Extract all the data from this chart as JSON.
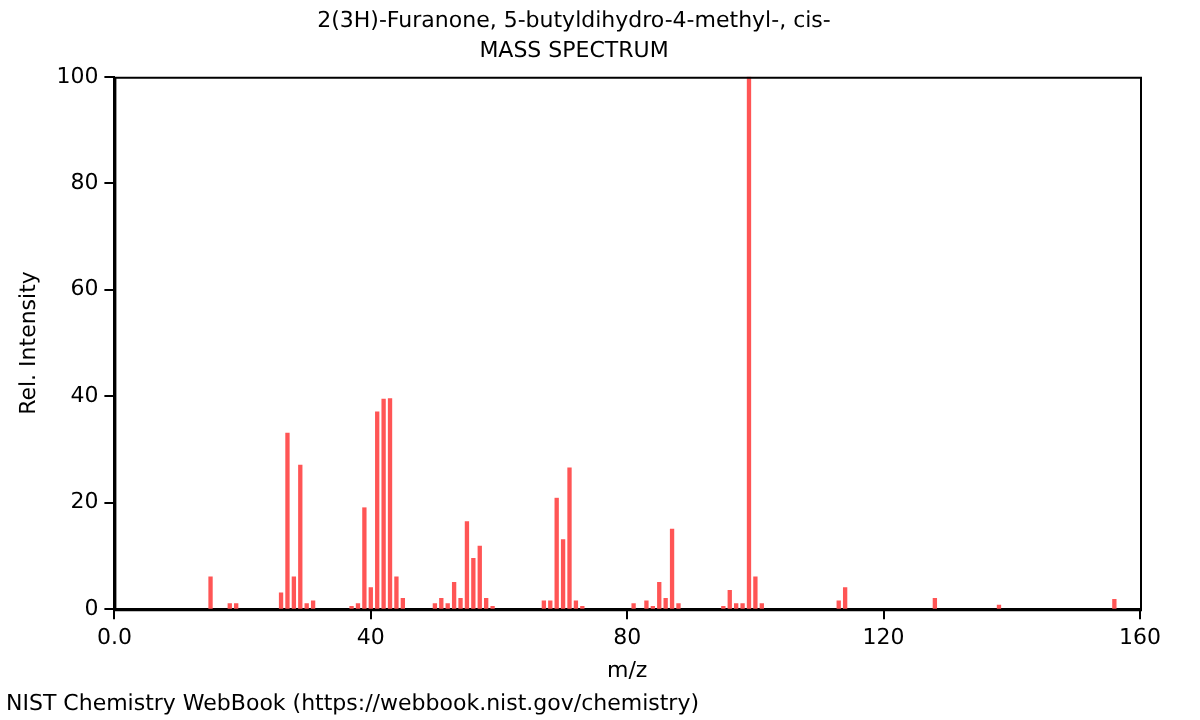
{
  "chart_data": {
    "type": "bar",
    "title": "2(3H)-Furanone, 5-butyldihydro-4-methyl-, cis-",
    "subtitle": "MASS SPECTRUM",
    "xlabel": "m/z",
    "ylabel": "Rel. Intensity",
    "annotations": [
      "NIST Chemistry WebBook (https://webbook.nist.gov/chemistry)"
    ],
    "x": [
      15,
      18,
      19,
      26,
      27,
      28,
      29,
      30,
      31,
      37,
      38,
      39,
      40,
      41,
      42,
      43,
      44,
      45,
      50,
      51,
      52,
      53,
      54,
      55,
      56,
      57,
      58,
      59,
      67,
      68,
      69,
      70,
      71,
      72,
      73,
      81,
      83,
      84,
      85,
      86,
      87,
      88,
      95,
      96,
      97,
      98,
      99,
      100,
      101,
      113,
      114,
      128,
      138,
      156
    ],
    "values": [
      6,
      1,
      1,
      3,
      33,
      6,
      27,
      1,
      1.5,
      0.5,
      1,
      19,
      4,
      37,
      39.4,
      39.5,
      6,
      2,
      1,
      2,
      1,
      5,
      2,
      16.4,
      9.5,
      11.8,
      2,
      0.5,
      1.5,
      1.5,
      20.8,
      13,
      26.5,
      1.5,
      0.5,
      1,
      1.5,
      0.5,
      5,
      2,
      15,
      1,
      0.5,
      3.5,
      1,
      1,
      100,
      6,
      1,
      1.5,
      4,
      2,
      0.7,
      1.8
    ],
    "color": "#ff5555",
    "xlim": [
      0,
      160
    ],
    "xticks": [
      {
        "value": 0,
        "label": "0.0"
      },
      40,
      80,
      120,
      160
    ],
    "ylim": [
      0,
      100
    ],
    "yticks": [
      0,
      20,
      40,
      60,
      80,
      100
    ],
    "grid": false
  }
}
